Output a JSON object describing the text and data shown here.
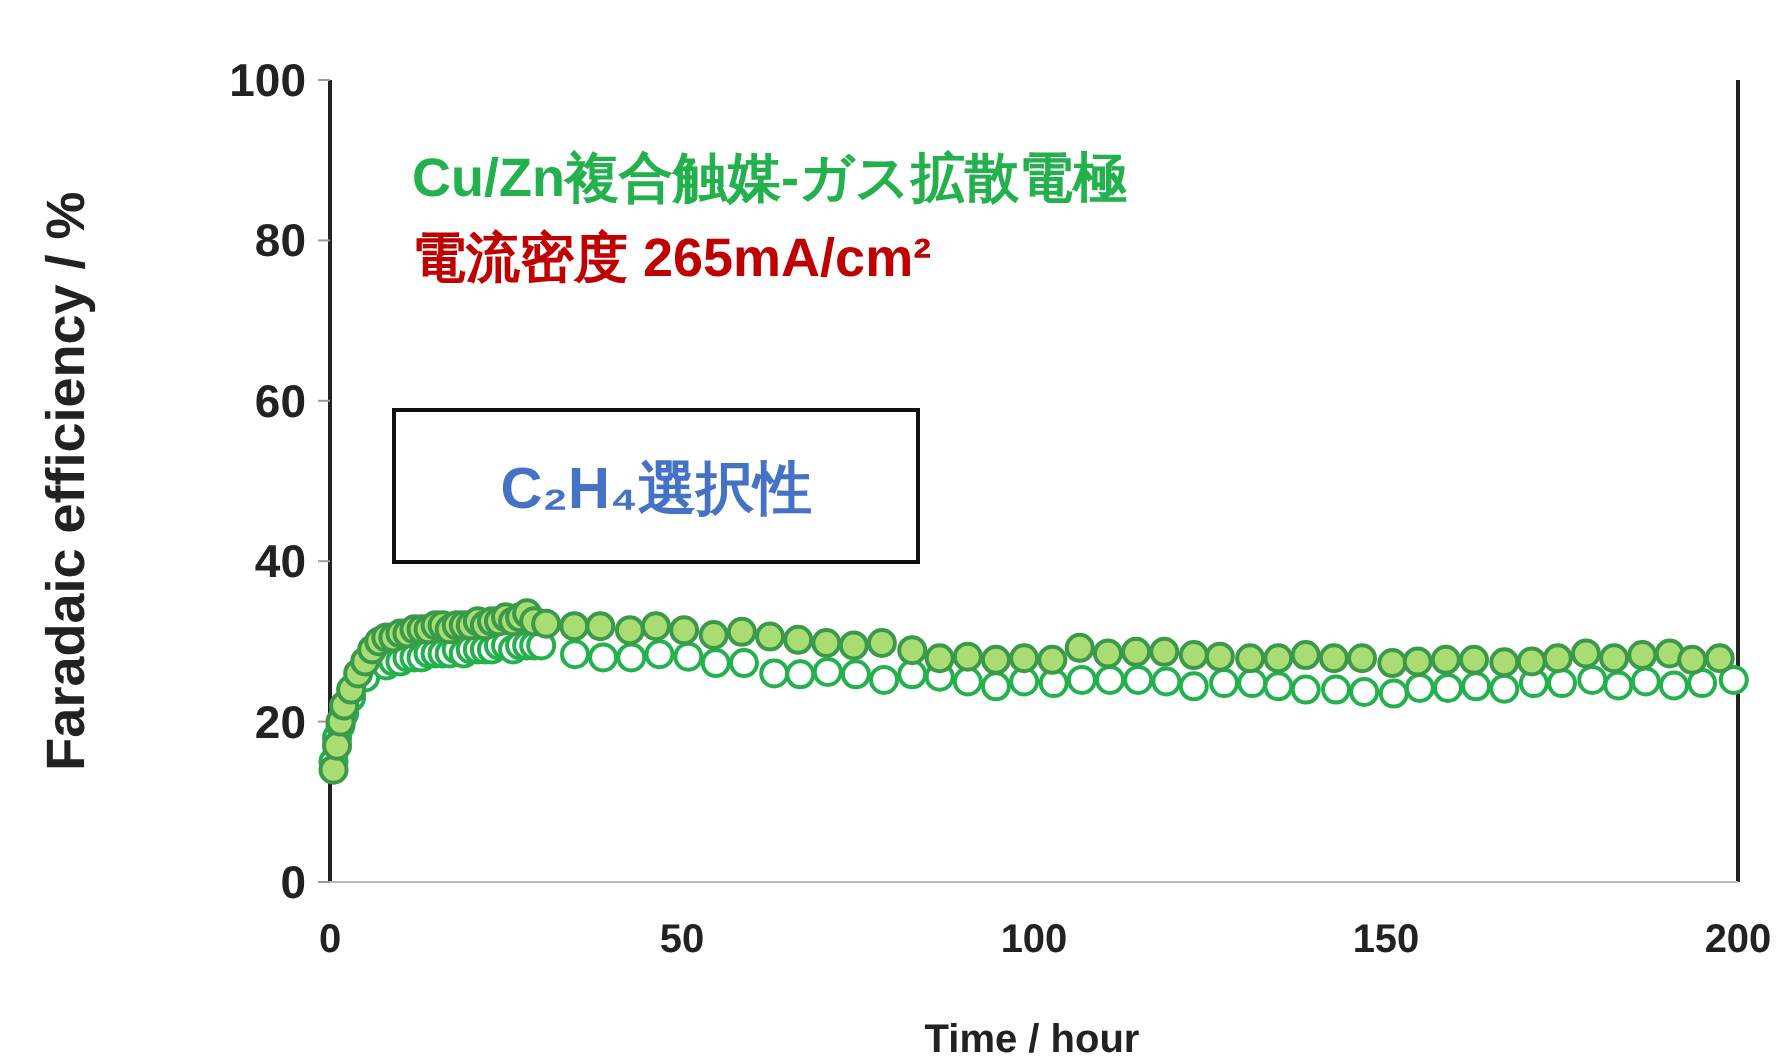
{
  "chart_data": {
    "type": "scatter",
    "xlabel": "Time / hour",
    "ylabel": "Faradaic efficiency / %",
    "annotations": [
      "Cu/Zn複合触媒-ガス拡散電極",
      "電流密度 265mA/cm²",
      "C₂H₄選択性"
    ],
    "xlim": [
      0,
      200
    ],
    "xticks": [
      0,
      50,
      100,
      150,
      200
    ],
    "ylim": [
      0,
      100
    ],
    "yticks": [
      0,
      20,
      40,
      60,
      80,
      100
    ],
    "grid": false,
    "marker": "circle",
    "series": [
      {
        "color": "#22b14c",
        "x": [
          0.5,
          1,
          1.5,
          2,
          3,
          4,
          5,
          6,
          7,
          8,
          9,
          10,
          11,
          12,
          13,
          14,
          15,
          16,
          17,
          18,
          19,
          20,
          21,
          22,
          23,
          24,
          25,
          26,
          27,
          28,
          29,
          30,
          34.8,
          38.8,
          42.8,
          46.8,
          50.9,
          54.8,
          58.8,
          63.1,
          66.8,
          70.7,
          74.7,
          78.7,
          82.7,
          86.6,
          90.6,
          94.6,
          98.6,
          102.8,
          106.8,
          110.8,
          114.8,
          118.8,
          122.7,
          127,
          131,
          134.7,
          138.6,
          142.9,
          146.9,
          151.1,
          154.8,
          158.8,
          162.8,
          166.8,
          171,
          175,
          179.3,
          183,
          186.9,
          190.9,
          194.9,
          199.4
        ],
        "values": [
          15,
          18,
          19.5,
          21,
          23,
          null,
          25.5,
          null,
          null,
          27,
          27.5,
          27.5,
          28,
          28,
          28,
          28.5,
          28.5,
          28.5,
          28.5,
          29,
          28.5,
          29,
          29,
          29,
          29,
          29.5,
          29.5,
          29,
          29.5,
          29.5,
          29.5,
          29.5,
          28.4,
          28,
          28,
          28.4,
          28.1,
          27.3,
          27.3,
          26,
          25.9,
          26.2,
          25.9,
          25.2,
          25.9,
          25.6,
          25,
          24.4,
          25,
          24.8,
          25.2,
          25.2,
          25.2,
          25,
          24.4,
          24.8,
          24.8,
          24.4,
          24,
          24,
          23.7,
          23.5,
          24.2,
          24.2,
          24.4,
          24.1,
          24.8,
          24.8,
          25.2,
          24.5,
          25,
          24.5,
          24.8,
          25.2
        ]
      },
      {
        "color": "#3a9a4a",
        "x": [
          0.5,
          1,
          1.5,
          2,
          3,
          4,
          5,
          6,
          7,
          8,
          9,
          10,
          11,
          12,
          13,
          14,
          15,
          16,
          17,
          18,
          19,
          20,
          21,
          22,
          23,
          24,
          25,
          26,
          27,
          28,
          29,
          30.7,
          34.7,
          38.4,
          42.6,
          46.3,
          50.3,
          54.5,
          58.5,
          62.5,
          66.5,
          70.5,
          74.4,
          78.4,
          82.7,
          86.6,
          90.6,
          94.6,
          98.6,
          102.6,
          106.5,
          110.5,
          114.5,
          118.5,
          122.7,
          126.4,
          130.7,
          134.7,
          138.6,
          142.6,
          146.6,
          150.9,
          154.5,
          158.5,
          162.5,
          166.8,
          170.7,
          174.4,
          178.4,
          182.4,
          186.4,
          190.3,
          193.5,
          197.4
        ],
        "values": [
          14,
          17,
          20,
          22,
          24,
          26,
          27.5,
          29,
          30,
          30.5,
          30.5,
          31,
          31,
          31.5,
          31.5,
          31.5,
          32,
          32,
          31.5,
          32,
          32,
          32,
          32.5,
          32,
          32.5,
          32.5,
          33,
          32.5,
          33,
          33.5,
          32.5,
          32.2,
          31.9,
          31.9,
          31.4,
          31.9,
          31.4,
          30.8,
          31.2,
          30.6,
          30.2,
          29.8,
          29.5,
          29.8,
          28.9,
          27.9,
          28.1,
          27.7,
          27.9,
          27.7,
          29.2,
          28.5,
          28.7,
          28.7,
          28.3,
          28.1,
          27.9,
          27.9,
          28.3,
          27.9,
          27.9,
          27.3,
          27.5,
          27.7,
          27.7,
          27.4,
          27.5,
          27.9,
          28.5,
          27.9,
          28.3,
          28.5,
          27.7,
          27.9
        ]
      }
    ]
  }
}
